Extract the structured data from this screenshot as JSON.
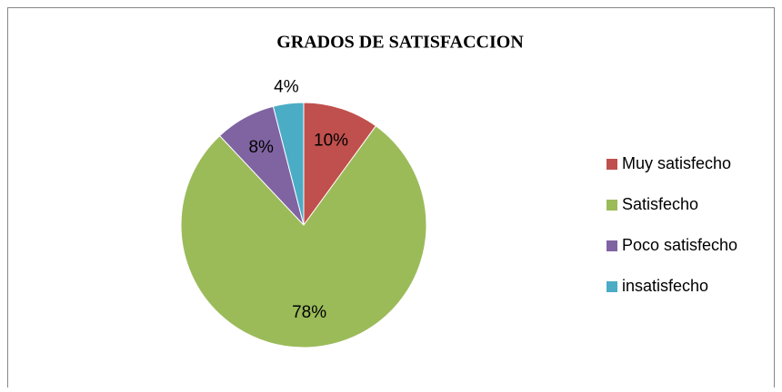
{
  "chart_data": {
    "type": "pie",
    "title": "GRADOS DE SATISFACCION",
    "categories": [
      "Muy satisfecho",
      "Satisfecho",
      "Poco satisfecho",
      "insatisfecho"
    ],
    "values": [
      10,
      78,
      8,
      4
    ],
    "value_labels": [
      "10%",
      "78%",
      "8%",
      "4%"
    ],
    "colors": [
      "#c0504d",
      "#9bbb59",
      "#8064a2",
      "#4bacc6"
    ],
    "legend": "right"
  }
}
